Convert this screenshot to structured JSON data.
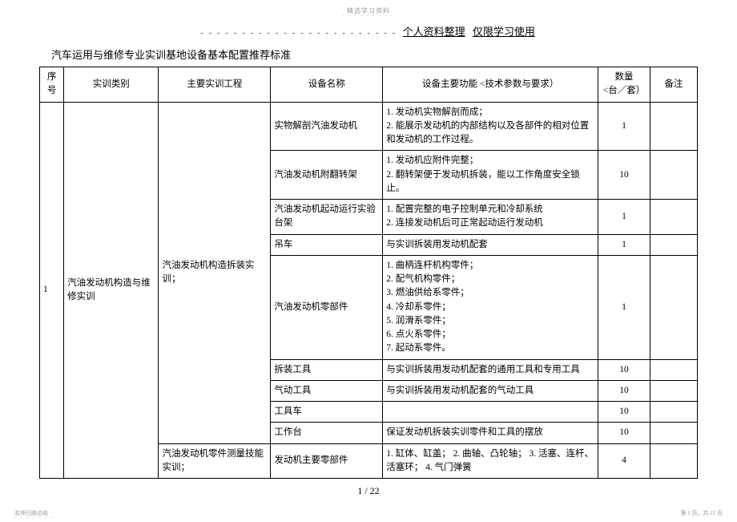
{
  "watermark_top": "精选学习资料",
  "watermark_dots": "- - - - - - - - -",
  "header_dashes": "- - - - - - - - - - - - - - - - - - - - - - - -",
  "header_text1": "个人资料整理",
  "header_text2": "仅限学习使用",
  "doc_title": "汽车运用与维修专业实训基地设备基本配置推荐标准",
  "columns": {
    "seq": "序号",
    "cat": "实训类别",
    "proj": "主要实训工程",
    "dev": "设备名称",
    "func": "设备主要功能 <技术参数与要求）",
    "qty_l1": "数量",
    "qty_l2": "<台／套）",
    "note": "备注"
  },
  "seq_val": "1",
  "category": "汽油发动机构造与维修实训",
  "project_a": "汽油发动机构造拆装实训；",
  "project_b": "汽油发动机零件测量技能实训；",
  "rows": [
    {
      "dev": "实物解剖汽油发动机",
      "func": "1. 发动机实物解剖而成；\n2. 能展示发动机的内部结构以及各部件的相对位置和发动机的工作过程。",
      "qty": "1",
      "note": ""
    },
    {
      "dev": "汽油发动机附翻转架",
      "func": "1. 发动机应附件完整；\n2. 翻转架便于发动机拆装，能以工作角度安全锁止。",
      "qty": "10",
      "note": ""
    },
    {
      "dev": "汽油发动机起动运行实验台架",
      "func": "1. 配置完整的电子控制单元和冷却系统\n2. 连接发动机后可正常起动运行发动机",
      "qty": "1",
      "note": ""
    },
    {
      "dev": "吊车",
      "func": "与实训拆装用发动机配套",
      "qty": "1",
      "note": ""
    },
    {
      "dev": "汽油发动机零部件",
      "func": "1. 曲柄连杆机构零件；\n2. 配气机构零件；\n3. 燃油供给系零件；\n4. 冷却系零件；\n5. 润滑系零件；\n6. 点火系零件；\n7. 起动系零件。",
      "qty": "1",
      "note": ""
    },
    {
      "dev": "拆装工具",
      "func": "与实训拆装用发动机配套的通用工具和专用工具",
      "qty": "10",
      "note": ""
    },
    {
      "dev": "气动工具",
      "func": "与实训拆装用发动机配套的气动工具",
      "qty": "10",
      "note": ""
    },
    {
      "dev": "工具车",
      "func": "",
      "qty": "10",
      "note": ""
    },
    {
      "dev": "工作台",
      "func": "保证发动机拆装实训零件和工具的摆放",
      "qty": "10",
      "note": ""
    },
    {
      "dev": "发动机主要零部件",
      "func": "1. 缸体、缸盖； 2. 曲轴、凸轮轴； 3. 活塞、连杆、活塞环； 4. 气门弹簧",
      "qty": "4",
      "note": ""
    }
  ],
  "page_num": "1 / 22",
  "footer_left": "名师归纳总结",
  "footer_dots": "- - - - - - -",
  "footer_right": "第 1 页，共 22 页"
}
